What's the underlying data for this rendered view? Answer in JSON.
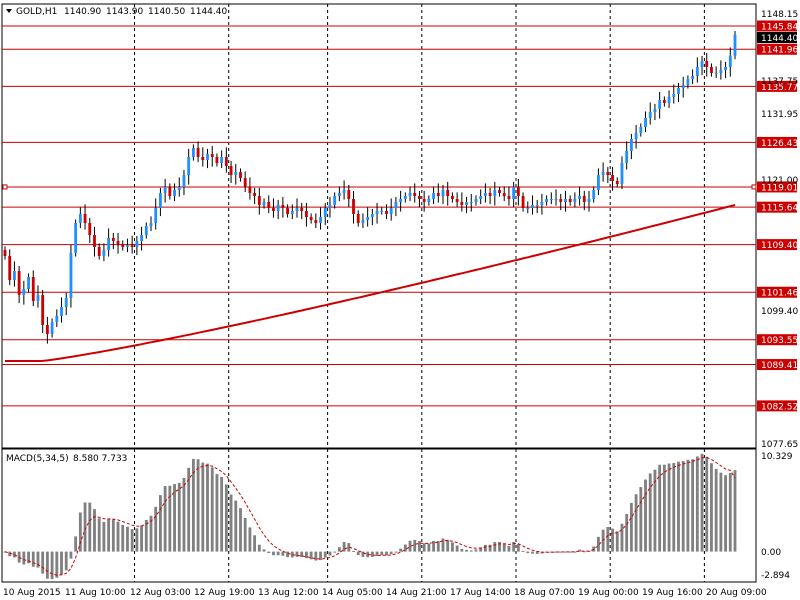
{
  "chart_data": [
    {
      "type": "candlestick",
      "header": {
        "symbol": "GOLD,H1",
        "values": [
          "1140.90",
          "1143.90",
          "1140.50",
          "1144.40"
        ]
      },
      "price_axis": {
        "ylim": [
          1075.5,
          1149.5
        ],
        "ticks": [
          1148.15,
          1137.75,
          1131.95,
          1121.0,
          1099.4,
          1077.65
        ],
        "tick_labels": [
          "1148.15",
          "1137.75",
          "1131.95",
          "1121.00",
          "1099.40",
          "1077.65"
        ],
        "current_price": 1144.4,
        "current_price_label": "1144.40"
      },
      "levels": [
        {
          "value": 1145.84,
          "label": "1145.84"
        },
        {
          "value": 1141.96,
          "label": "1141.96"
        },
        {
          "value": 1135.77,
          "label": "1135.77"
        },
        {
          "value": 1126.43,
          "label": "1126.43"
        },
        {
          "value": 1119.01,
          "label": "1119.01"
        },
        {
          "value": 1115.64,
          "label": "1115.64"
        },
        {
          "value": 1109.4,
          "label": "1109.40"
        },
        {
          "value": 1101.46,
          "label": "1101.46"
        },
        {
          "value": 1093.55,
          "label": "1093.55"
        },
        {
          "value": 1089.41,
          "label": "1089.41"
        },
        {
          "value": 1082.52,
          "label": "1082.52"
        }
      ],
      "time_axis": {
        "bar_count": 164,
        "separator_bars": [
          27,
          47,
          68,
          88,
          108,
          128,
          148
        ],
        "labels": [
          {
            "bar": 0,
            "text": "10 Aug 2015"
          },
          {
            "bar": 14,
            "text": "11 Aug 10:00"
          },
          {
            "bar": 29,
            "text": "12 Aug 03:00"
          },
          {
            "bar": 43,
            "text": "12 Aug 19:00"
          },
          {
            "bar": 57,
            "text": "13 Aug 12:00"
          },
          {
            "bar": 72,
            "text": "14 Aug 05:00"
          },
          {
            "bar": 86,
            "text": "14 Aug 21:00"
          },
          {
            "bar": 100,
            "text": "17 Aug 14:00"
          },
          {
            "bar": 114,
            "text": "18 Aug 07:00"
          },
          {
            "bar": 128,
            "text": "19 Aug 00:00"
          },
          {
            "bar": 142,
            "text": "19 Aug 16:00"
          },
          {
            "bar": 156,
            "text": "20 Aug 09:00"
          }
        ]
      },
      "closes": [
        1107.5,
        1103.5,
        1105.0,
        1101.0,
        1102.0,
        1104.0,
        1100.0,
        1101.0,
        1096.0,
        1094.5,
        1096.5,
        1097.5,
        1099.0,
        1100.5,
        1108.0,
        1113.0,
        1114.5,
        1113.0,
        1111.0,
        1109.0,
        1107.5,
        1108.5,
        1110.5,
        1110.0,
        1109.5,
        1109.0,
        1109.3,
        1109.0,
        1110.0,
        1111.0,
        1112.5,
        1113.0,
        1115.5,
        1118.0,
        1119.0,
        1117.5,
        1118.5,
        1119.0,
        1121.0,
        1124.0,
        1125.5,
        1124.0,
        1123.5,
        1124.5,
        1124.0,
        1123.0,
        1124.0,
        1122.5,
        1121.0,
        1121.5,
        1120.5,
        1119.0,
        1118.0,
        1117.5,
        1116.0,
        1116.5,
        1115.5,
        1115.0,
        1116.0,
        1115.5,
        1114.5,
        1115.0,
        1115.5,
        1115.0,
        1114.0,
        1113.5,
        1113.0,
        1114.0,
        1115.5,
        1116.0,
        1117.5,
        1118.0,
        1118.5,
        1117.0,
        1114.5,
        1113.0,
        1113.5,
        1114.0,
        1114.5,
        1115.0,
        1115.0,
        1114.5,
        1115.5,
        1116.5,
        1117.0,
        1117.5,
        1118.0,
        1117.5,
        1117.0,
        1116.5,
        1117.0,
        1118.0,
        1117.5,
        1118.5,
        1117.5,
        1117.0,
        1116.5,
        1116.0,
        1116.5,
        1116.5,
        1117.0,
        1117.5,
        1118.0,
        1117.5,
        1118.5,
        1118.0,
        1117.5,
        1117.0,
        1119.0,
        1117.5,
        1115.5,
        1115.5,
        1116.0,
        1116.0,
        1116.5,
        1117.0,
        1117.0,
        1117.0,
        1116.5,
        1117.0,
        1116.5,
        1117.0,
        1117.5,
        1116.5,
        1117.0,
        1118.5,
        1121.0,
        1121.5,
        1121.0,
        1120.0,
        1119.5,
        1123.0,
        1125.0,
        1127.0,
        1128.0,
        1129.0,
        1130.5,
        1131.5,
        1132.0,
        1133.5,
        1133.0,
        1134.0,
        1134.5,
        1135.5,
        1136.0,
        1137.0,
        1137.5,
        1139.0,
        1140.0,
        1139.0,
        1138.0,
        1138.0,
        1138.5,
        1139.0,
        1140.9,
        1144.4
      ],
      "ma": {
        "period_desc": "moving average",
        "start": 1090.0,
        "end": 1116.0
      },
      "macd": {
        "title": "MACD(5,34,5)",
        "values_label": "8.580 7.733",
        "ylim": [
          -3.2,
          10.8
        ],
        "ticks": [
          10.329,
          0.0,
          -2.894
        ],
        "tick_labels": [
          "10.329",
          "0.00",
          "-2.894"
        ],
        "main_value": 8.58,
        "signal_value": 7.733
      }
    }
  ],
  "colors": {
    "background": "#ffffff",
    "grid": "#000000",
    "bull_candle": "#1e90ff",
    "bear_candle": "#cc0000",
    "level_line": "#cc0000",
    "level_label_bg": "#cc0000",
    "ma_line": "#cc0000",
    "macd_bars": "#808080",
    "macd_signal": "#cc0000",
    "current_price_bg": "#000000"
  }
}
